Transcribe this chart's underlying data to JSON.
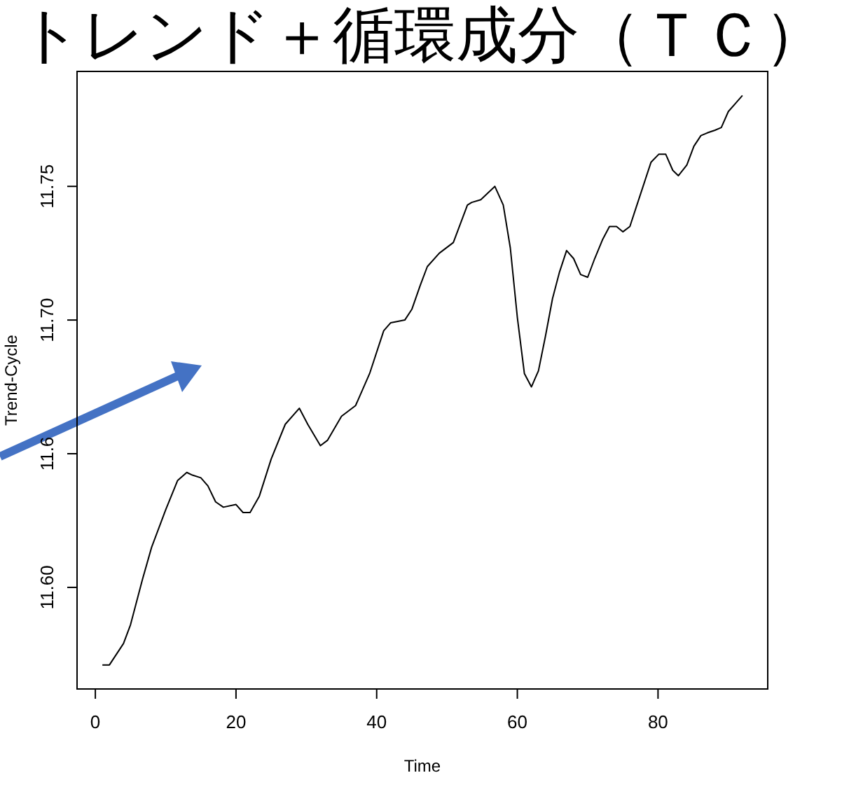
{
  "chart_data": {
    "type": "line",
    "title": "トレンド＋循環成分（ＴＣ）",
    "xlabel": "Time",
    "ylabel": "Trend-Cycle",
    "xlim": [
      -2.6,
      95.6
    ],
    "ylim": [
      11.562,
      11.793
    ],
    "xticks": [
      0,
      20,
      40,
      60,
      80
    ],
    "yticks": [
      {
        "value": 11.6,
        "label": "11.60"
      },
      {
        "value": 11.65,
        "label": "11.6"
      },
      {
        "value": 11.7,
        "label": "11.70"
      },
      {
        "value": 11.75,
        "label": "11.75"
      }
    ],
    "grid": false,
    "line_style": "solid",
    "marker": "none",
    "x": [
      1,
      2,
      4,
      5,
      6.7,
      8,
      10,
      11.7,
      13,
      13.8,
      15,
      16,
      17.1,
      18.2,
      20,
      21,
      22,
      23.3,
      25,
      27,
      29,
      30.2,
      32,
      33,
      35,
      37,
      39,
      41,
      42,
      44,
      45,
      46.2,
      47.2,
      48.9,
      50.9,
      52.9,
      53.5,
      54.8,
      56.8,
      58,
      59,
      60,
      61,
      62,
      63,
      64,
      65,
      66,
      67,
      68,
      69,
      70,
      71,
      72.1,
      73.1,
      74.1,
      75,
      76,
      77,
      78,
      79,
      80.1,
      81.1,
      82.1,
      82.9,
      84.1,
      85.1,
      86.1,
      87,
      88.1,
      89,
      90,
      91,
      92
    ],
    "series": [
      {
        "color": "#000000",
        "values": [
          11.571,
          11.571,
          11.579,
          11.586,
          11.603,
          11.615,
          11.629,
          11.64,
          11.643,
          11.642,
          11.641,
          11.638,
          11.632,
          11.63,
          11.631,
          11.628,
          11.628,
          11.634,
          11.648,
          11.661,
          11.667,
          11.661,
          11.653,
          11.655,
          11.664,
          11.668,
          11.68,
          11.696,
          11.699,
          11.7,
          11.704,
          11.713,
          11.72,
          11.725,
          11.729,
          11.743,
          11.744,
          11.745,
          11.75,
          11.743,
          11.727,
          11.701,
          11.68,
          11.675,
          11.681,
          11.694,
          11.708,
          11.718,
          11.726,
          11.723,
          11.717,
          11.716,
          11.723,
          11.73,
          11.735,
          11.735,
          11.733,
          11.735,
          11.743,
          11.751,
          11.759,
          11.762,
          11.762,
          11.756,
          11.754,
          11.758,
          11.765,
          11.769,
          11.77,
          11.771,
          11.772,
          11.778,
          11.781,
          11.784
        ]
      }
    ]
  }
}
